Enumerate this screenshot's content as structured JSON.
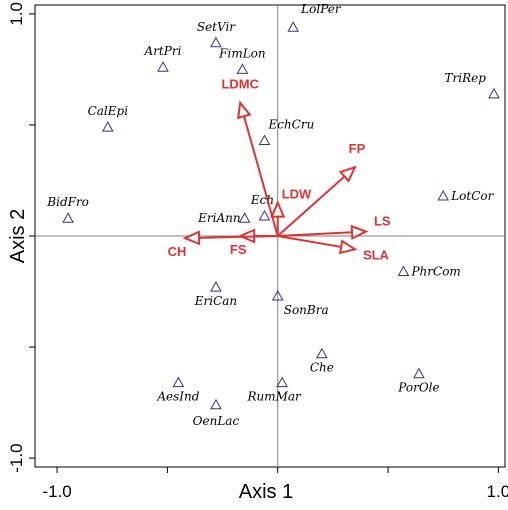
{
  "chart_data": {
    "type": "scatter",
    "xlabel": "Axis 1",
    "ylabel": "Axis 2",
    "xlim": [
      -1.1,
      1.03
    ],
    "ylim": [
      -1.04,
      1.04
    ],
    "x_ticks": [
      -1.0,
      -0.5,
      0.0,
      0.5,
      1.0
    ],
    "x_tick_labels": [
      "-1.0",
      "",
      "",
      "",
      "1.0"
    ],
    "y_ticks": [
      -1.0,
      -0.5,
      0.0,
      0.5,
      1.0
    ],
    "y_tick_labels": [
      "-1.0",
      "",
      "",
      "",
      "1.0"
    ],
    "reference_lines": {
      "x": 0,
      "y": 0
    },
    "species": [
      {
        "name": "LolPer",
        "x": 0.07,
        "y": 0.94
      },
      {
        "name": "SetVir",
        "x": -0.28,
        "y": 0.87
      },
      {
        "name": "FimLon",
        "x": -0.16,
        "y": 0.75
      },
      {
        "name": "ArtPri",
        "x": -0.52,
        "y": 0.76
      },
      {
        "name": "TriRep",
        "x": 0.98,
        "y": 0.64
      },
      {
        "name": "CalEpi",
        "x": -0.77,
        "y": 0.49
      },
      {
        "name": "EchCru",
        "x": -0.06,
        "y": 0.43
      },
      {
        "name": "LotCor",
        "x": 0.75,
        "y": 0.18
      },
      {
        "name": "BidFro",
        "x": -0.95,
        "y": 0.08
      },
      {
        "name": "Ech",
        "x": -0.06,
        "y": 0.09
      },
      {
        "name": "EriAnn",
        "x": -0.15,
        "y": 0.08
      },
      {
        "name": "PhrCom",
        "x": 0.57,
        "y": -0.16
      },
      {
        "name": "EriCan",
        "x": -0.28,
        "y": -0.23
      },
      {
        "name": "SonBra",
        "x": 0.0,
        "y": -0.27
      },
      {
        "name": "Che",
        "x": 0.2,
        "y": -0.53
      },
      {
        "name": "PorOle",
        "x": 0.64,
        "y": -0.62
      },
      {
        "name": "AesInd",
        "x": -0.45,
        "y": -0.66
      },
      {
        "name": "RumMar",
        "x": 0.02,
        "y": -0.66
      },
      {
        "name": "OenLac",
        "x": -0.28,
        "y": -0.76
      }
    ],
    "traits": [
      {
        "name": "LDMC",
        "x": -0.17,
        "y": 0.6
      },
      {
        "name": "FP",
        "x": 0.35,
        "y": 0.31
      },
      {
        "name": "LDW",
        "x": 0.0,
        "y": 0.15
      },
      {
        "name": "LS",
        "x": 0.4,
        "y": 0.02
      },
      {
        "name": "SLA",
        "x": 0.35,
        "y": -0.06
      },
      {
        "name": "FS",
        "x": -0.17,
        "y": 0.0
      },
      {
        "name": "CH",
        "x": -0.42,
        "y": -0.01
      }
    ],
    "colors": {
      "species_marker": "#3a2f8f",
      "trait_arrow": "#dd3333",
      "axis": "#000000",
      "reference_line": "#7f7f7f"
    }
  }
}
